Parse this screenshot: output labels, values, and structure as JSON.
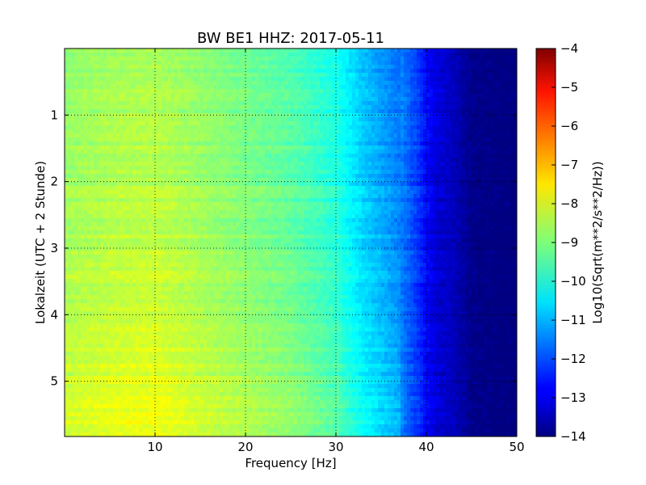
{
  "chart_data": {
    "type": "heatmap",
    "title": "BW BE1 HHZ: 2017-05-11",
    "xlabel": "Frequency [Hz]",
    "ylabel": "Lokalzeit (UTC + 2 Stunde)",
    "xlim": [
      0,
      50
    ],
    "ylim": [
      0,
      5.83
    ],
    "y_inverted": true,
    "x_ticks": [
      10,
      20,
      30,
      40,
      50
    ],
    "y_ticks": [
      1,
      2,
      3,
      4,
      5
    ],
    "grid": true,
    "colormap": "jet",
    "colorbar": {
      "label": "Log10(Sqrt(m**2/s**2/Hz))",
      "range": [
        -14,
        -4
      ],
      "ticks": [
        -4,
        -5,
        -6,
        -7,
        -8,
        -9,
        -10,
        -11,
        -12,
        -13,
        -14
      ]
    },
    "frequency_profile": {
      "x": [
        0,
        2,
        5,
        10,
        15,
        20,
        25,
        30,
        33,
        35,
        37,
        39,
        40,
        41,
        43,
        45,
        48,
        50
      ],
      "values": [
        -8.6,
        -8.5,
        -8.4,
        -8.3,
        -8.6,
        -8.9,
        -9.2,
        -9.8,
        -10.6,
        -11.0,
        -11.4,
        -12.2,
        -12.7,
        -13.1,
        -13.4,
        -13.9,
        -14.0,
        -14.0
      ]
    },
    "time_trend": {
      "y": [
        0,
        1,
        2,
        3,
        4,
        5,
        5.83
      ],
      "offset": [
        -0.3,
        -0.25,
        -0.1,
        0.0,
        0.15,
        0.3,
        0.45
      ]
    }
  }
}
